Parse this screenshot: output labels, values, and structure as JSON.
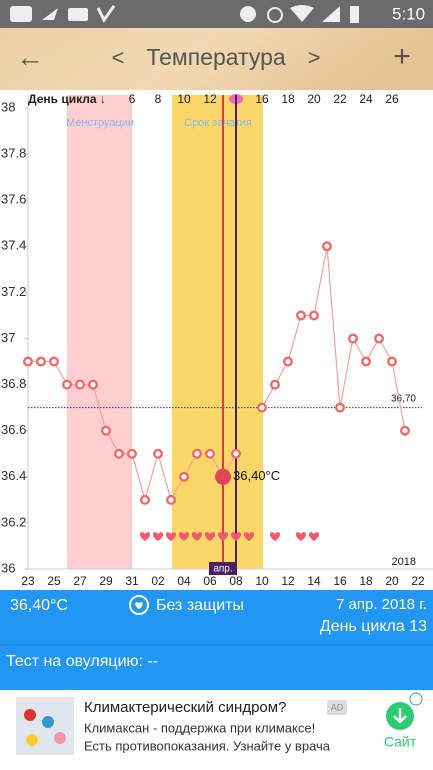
{
  "status_bar": {
    "time": "5:10"
  },
  "app_bar": {
    "back": "←",
    "prev": "<",
    "title": "Температура",
    "next": ">",
    "add": "+"
  },
  "chart_data": {
    "type": "line",
    "top_axis": {
      "title": "День цикла ↓",
      "labels": [
        null,
        null,
        null,
        null,
        null,
        null,
        null,
        null,
        6,
        null,
        8,
        null,
        10,
        null,
        12,
        null,
        null,
        null,
        16,
        null,
        18,
        null,
        20,
        null,
        22,
        null,
        24,
        null,
        26,
        null,
        null
      ]
    },
    "categories": [
      "23",
      null,
      "25",
      null,
      "27",
      null,
      "29",
      null,
      "31",
      null,
      "02",
      null,
      "04",
      null,
      "06",
      null,
      "08",
      null,
      "10",
      null,
      "12",
      null,
      "14",
      null,
      "16",
      null,
      "18",
      null,
      "20",
      null,
      "22"
    ],
    "values": [
      36.9,
      36.9,
      36.9,
      36.8,
      36.8,
      36.8,
      36.6,
      36.5,
      36.5,
      36.3,
      36.5,
      36.3,
      36.4,
      36.5,
      36.5,
      36.4,
      36.5,
      null,
      36.7,
      36.8,
      36.9,
      37.1,
      37.1,
      37.4,
      36.7,
      37.0,
      36.9,
      37.0,
      36.9,
      36.6,
      null
    ],
    "value_labels": [
      null,
      null,
      null,
      null,
      null,
      null,
      null,
      null,
      null,
      null,
      null,
      null,
      null,
      null,
      null,
      "36,40°C",
      null,
      null,
      null,
      null,
      null,
      null,
      null,
      null,
      null,
      null,
      null,
      null,
      null,
      null,
      null
    ],
    "intercourse": [
      false,
      false,
      false,
      false,
      false,
      false,
      false,
      false,
      false,
      true,
      true,
      true,
      true,
      true,
      true,
      true,
      true,
      true,
      false,
      true,
      false,
      true,
      true,
      false,
      false,
      false,
      false,
      false,
      false,
      false,
      false
    ],
    "color": "#f06a6a",
    "ylim": [
      36,
      38
    ],
    "yticks": [
      36,
      36.2,
      36.4,
      36.6,
      36.8,
      37,
      37.2,
      37.4,
      37.6,
      37.8,
      38
    ],
    "reference": {
      "value": 36.7,
      "label": "36,70"
    },
    "bands": [
      "Менструации",
      "Срок зачатия"
    ],
    "month_label": "апр.",
    "year_label": "2018"
  },
  "info_bar": {
    "temperature": "36,40°C",
    "protection": "Без защиты",
    "date": "7 апр. 2018 г.",
    "cycle_day": "День цикла 13"
  },
  "test_line": "Тест на овуляцию: --",
  "ad": {
    "title": "Климактерический синдром?",
    "badge": "AD",
    "line1": "Климаксан - поддержка при климаксе!",
    "line2": "Есть противопоказания. Узнайте у врача",
    "button": "Сайт"
  }
}
